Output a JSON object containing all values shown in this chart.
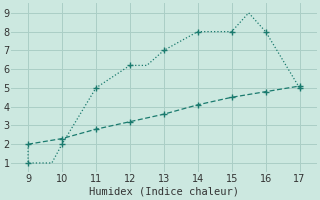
{
  "xlabel": "Humidex (Indice chaleur)",
  "xlim": [
    8.5,
    17.5
  ],
  "ylim": [
    0.5,
    9.5
  ],
  "xticks": [
    9,
    10,
    11,
    12,
    13,
    14,
    15,
    16,
    17
  ],
  "yticks": [
    1,
    2,
    3,
    4,
    5,
    6,
    7,
    8,
    9
  ],
  "bg_color": "#cce8e0",
  "grid_color": "#aacec6",
  "line_color": "#1a7a6e",
  "line1_x": [
    9,
    9,
    9.7,
    10,
    11,
    12,
    12.5,
    13,
    14,
    15,
    15.5,
    16,
    17
  ],
  "line1_y": [
    2,
    1,
    1,
    2,
    5,
    6.2,
    6.2,
    7,
    8,
    8,
    9,
    8,
    5
  ],
  "line2_x": [
    9,
    10,
    11,
    12,
    13,
    14,
    15,
    16,
    17
  ],
  "line2_y": [
    2.0,
    2.3,
    2.8,
    3.2,
    3.6,
    4.1,
    4.5,
    4.8,
    5.1
  ],
  "marker1_x": [
    9,
    10,
    11,
    12,
    13,
    14,
    15,
    16,
    17
  ],
  "marker1_y": [
    1,
    2,
    5,
    6.2,
    7,
    8,
    8,
    8,
    5
  ],
  "marker2_x": [
    9,
    10,
    11,
    12,
    13,
    14,
    15,
    16,
    17
  ],
  "marker2_y": [
    2.0,
    2.3,
    2.8,
    3.2,
    3.6,
    4.1,
    4.5,
    4.8,
    5.1
  ],
  "xlabel_fontsize": 7.5,
  "tick_fontsize": 7
}
